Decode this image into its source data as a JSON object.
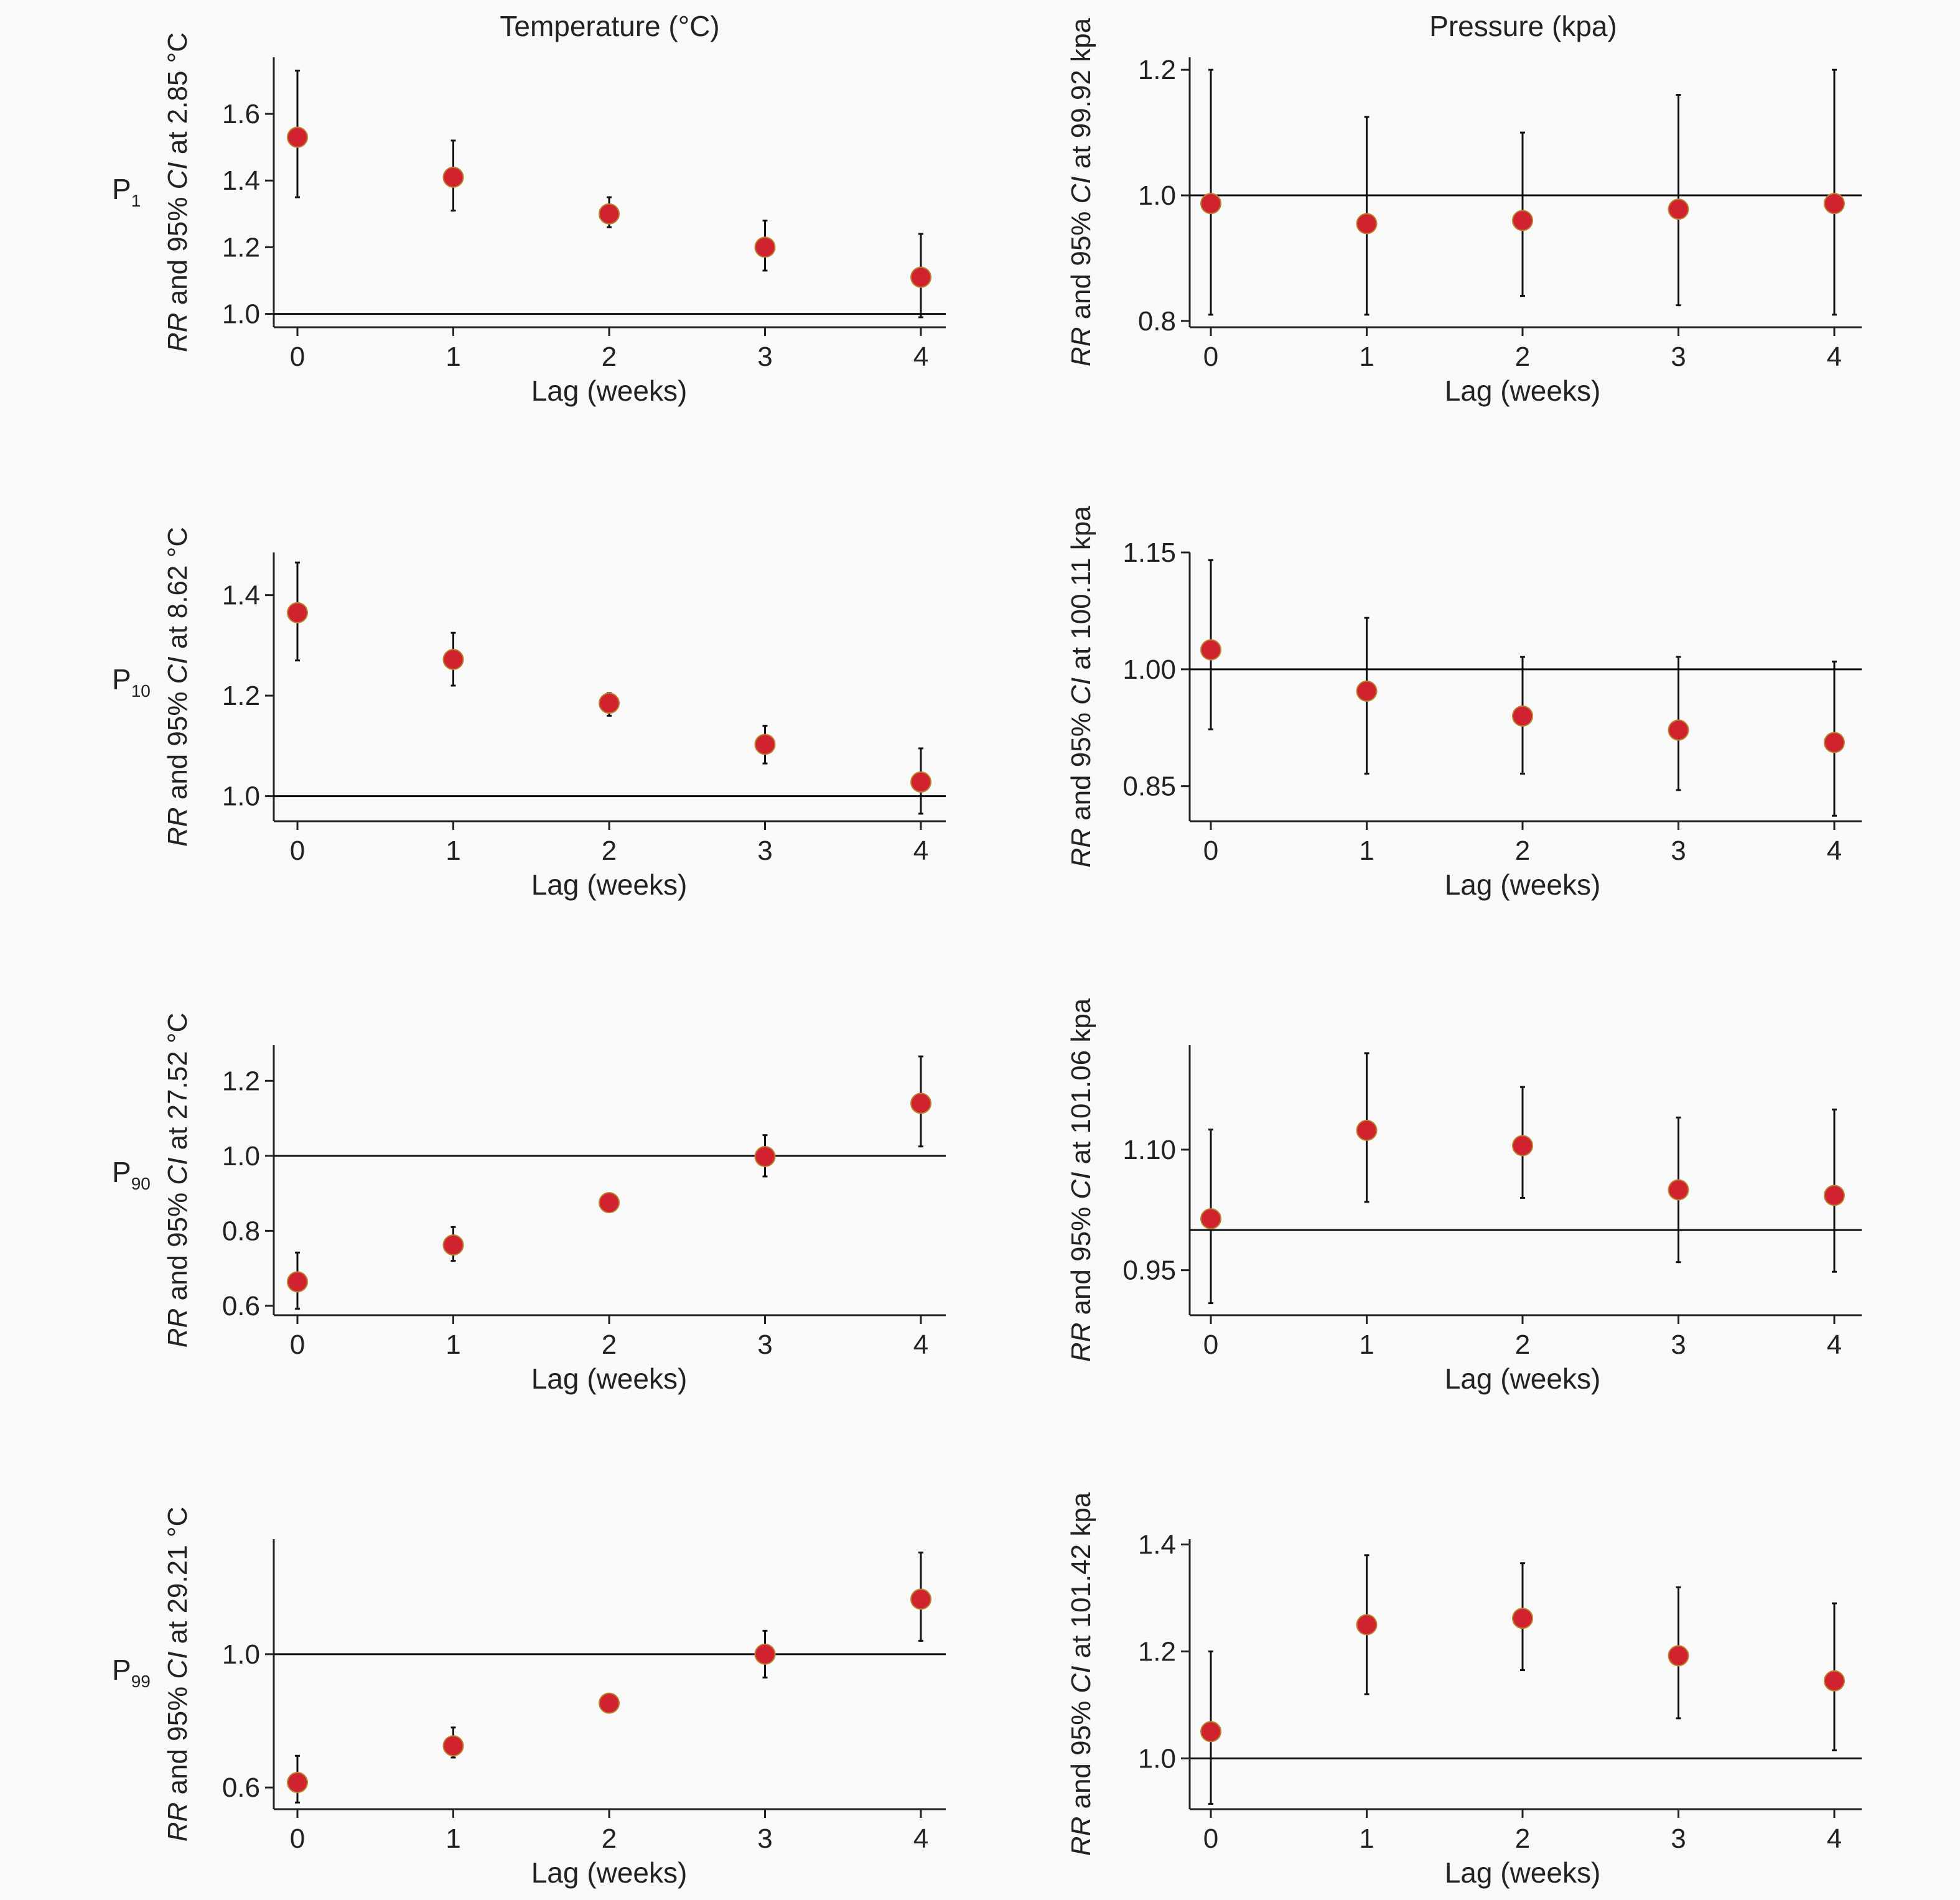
{
  "columns": [
    {
      "title": "Temperature (°C)"
    },
    {
      "title": "Pressure (kpa)"
    }
  ],
  "rows": [
    {
      "label": "P",
      "sub": "1"
    },
    {
      "label": "P",
      "sub": "10"
    },
    {
      "label": "P",
      "sub": "90"
    },
    {
      "label": "P",
      "sub": "99"
    }
  ],
  "colors": {
    "point": "#d0222f",
    "point_edge": "#b8862e",
    "line": "#111111"
  },
  "chart_data": [
    {
      "id": "temp-p1",
      "type": "scatter",
      "error_bars": true,
      "xlabel": "Lag (weeks)",
      "ylabel_pre": "RR",
      "ylabel_mid": " and 95% ",
      "ylabel_ci": "CI",
      "ylabel_post": " at 2.85 °C",
      "x": [
        0,
        1,
        2,
        3,
        4
      ],
      "y": [
        1.53,
        1.41,
        1.3,
        1.2,
        1.11
      ],
      "lower": [
        1.35,
        1.31,
        1.26,
        1.13,
        0.99
      ],
      "upper": [
        1.73,
        1.52,
        1.35,
        1.28,
        1.24
      ],
      "ylim": [
        0.96,
        1.77
      ],
      "yticks": [
        1.0,
        1.2,
        1.4,
        1.6
      ],
      "tick_fmt": 1,
      "ref_line": 1.0
    },
    {
      "id": "pres-p1",
      "type": "scatter",
      "error_bars": true,
      "xlabel": "Lag (weeks)",
      "ylabel_pre": "RR",
      "ylabel_mid": " and 95% ",
      "ylabel_ci": "CI",
      "ylabel_post": " at 99.92 kpa",
      "x": [
        0,
        1,
        2,
        3,
        4
      ],
      "y": [
        0.987,
        0.955,
        0.96,
        0.978,
        0.987
      ],
      "lower": [
        0.81,
        0.81,
        0.84,
        0.825,
        0.81
      ],
      "upper": [
        1.2,
        1.125,
        1.1,
        1.16,
        1.2
      ],
      "ylim": [
        0.79,
        1.22
      ],
      "yticks": [
        0.8,
        1.0,
        1.2
      ],
      "tick_fmt": 1,
      "ref_line": 1.0
    },
    {
      "id": "temp-p10",
      "type": "scatter",
      "error_bars": true,
      "xlabel": "Lag (weeks)",
      "ylabel_pre": "RR",
      "ylabel_mid": " and 95% ",
      "ylabel_ci": "CI",
      "ylabel_post": " at 8.62 °C",
      "x": [
        0,
        1,
        2,
        3,
        4
      ],
      "y": [
        1.365,
        1.272,
        1.185,
        1.103,
        1.028
      ],
      "lower": [
        1.27,
        1.22,
        1.16,
        1.065,
        0.965
      ],
      "upper": [
        1.465,
        1.325,
        1.205,
        1.14,
        1.095
      ],
      "ylim": [
        0.95,
        1.485
      ],
      "yticks": [
        1.0,
        1.2,
        1.4
      ],
      "tick_fmt": 1,
      "ref_line": 1.0
    },
    {
      "id": "pres-p10",
      "type": "scatter",
      "error_bars": true,
      "xlabel": "Lag (weeks)",
      "ylabel_pre": "RR",
      "ylabel_mid": " and 95% ",
      "ylabel_ci": "CI",
      "ylabel_post": " at 100.11 kpa",
      "x": [
        0,
        1,
        2,
        3,
        4
      ],
      "y": [
        1.025,
        0.972,
        0.94,
        0.922,
        0.906
      ],
      "lower": [
        0.923,
        0.866,
        0.866,
        0.845,
        0.812
      ],
      "upper": [
        1.14,
        1.066,
        1.016,
        1.016,
        1.01
      ],
      "ylim": [
        0.805,
        1.15
      ],
      "yticks": [
        0.85,
        1.0,
        1.15
      ],
      "tick_fmt": 2,
      "ref_line": 1.0
    },
    {
      "id": "temp-p90",
      "type": "scatter",
      "error_bars": true,
      "xlabel": "Lag (weeks)",
      "ylabel_pre": "RR",
      "ylabel_mid": " and 95% ",
      "ylabel_ci": "CI",
      "ylabel_post": " at 27.52 °C",
      "x": [
        0,
        1,
        2,
        3,
        4
      ],
      "y": [
        0.664,
        0.762,
        0.875,
        0.998,
        1.14
      ],
      "lower": [
        0.592,
        0.72,
        0.865,
        0.945,
        1.025
      ],
      "upper": [
        0.742,
        0.81,
        0.885,
        1.055,
        1.265
      ],
      "ylim": [
        0.575,
        1.295
      ],
      "yticks": [
        0.6,
        0.8,
        1.0,
        1.2
      ],
      "tick_fmt": 1,
      "ref_line": 1.0
    },
    {
      "id": "pres-p90",
      "type": "scatter",
      "error_bars": true,
      "xlabel": "Lag (weeks)",
      "ylabel_pre": "RR",
      "ylabel_mid": " and 95% ",
      "ylabel_ci": "CI",
      "ylabel_post": " at 101.06 kpa",
      "x": [
        0,
        1,
        2,
        3,
        4
      ],
      "y": [
        1.014,
        1.124,
        1.105,
        1.05,
        1.043
      ],
      "lower": [
        0.909,
        1.035,
        1.04,
        0.96,
        0.948
      ],
      "upper": [
        1.125,
        1.22,
        1.178,
        1.14,
        1.15
      ],
      "ylim": [
        0.894,
        1.23
      ],
      "yticks": [
        0.95,
        1.1
      ],
      "tick_fmt": 2,
      "ref_line": 1.0
    },
    {
      "id": "temp-p99",
      "type": "scatter",
      "error_bars": true,
      "xlabel": "Lag (weeks)",
      "ylabel_pre": "RR",
      "ylabel_mid": " and 95% ",
      "ylabel_ci": "CI",
      "ylabel_post": " at 29.21 °C",
      "x": [
        0,
        1,
        2,
        3,
        4
      ],
      "y": [
        0.615,
        0.725,
        0.853,
        1.0,
        1.165
      ],
      "lower": [
        0.555,
        0.69,
        0.84,
        0.93,
        1.04
      ],
      "upper": [
        0.695,
        0.78,
        0.865,
        1.07,
        1.305
      ],
      "ylim": [
        0.535,
        1.345
      ],
      "yticks": [
        0.6,
        1.0
      ],
      "tick_fmt": 1,
      "ref_line": 1.0
    },
    {
      "id": "pres-p99",
      "type": "scatter",
      "error_bars": true,
      "xlabel": "Lag (weeks)",
      "ylabel_pre": "RR",
      "ylabel_mid": " and 95% ",
      "ylabel_ci": "CI",
      "ylabel_post": " at 101.42 kpa",
      "x": [
        0,
        1,
        2,
        3,
        4
      ],
      "y": [
        1.05,
        1.25,
        1.262,
        1.192,
        1.145
      ],
      "lower": [
        0.915,
        1.12,
        1.165,
        1.075,
        1.015
      ],
      "upper": [
        1.2,
        1.38,
        1.365,
        1.32,
        1.29
      ],
      "ylim": [
        0.905,
        1.41
      ],
      "yticks": [
        1.0,
        1.2,
        1.4
      ],
      "tick_fmt": 1,
      "ref_line": 1.0
    }
  ]
}
